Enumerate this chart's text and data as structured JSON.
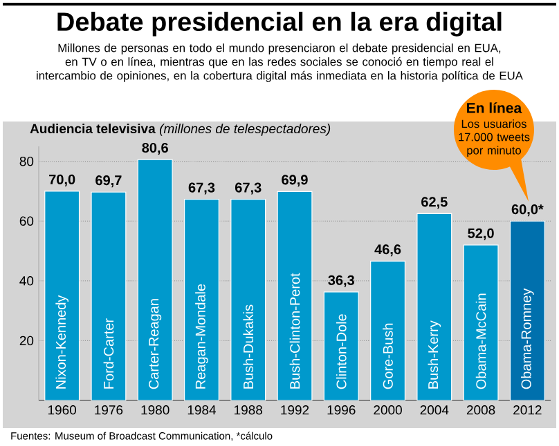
{
  "chart_data": {
    "type": "bar",
    "title": "Debate presidencial en la era digital",
    "subtitle": "Millones de personas en todo el mundo presenciaron el debate presidencial en EUA, en TV o en línea, mientras que en las redes sociales se conoció en tiempo real el intercambio de opiniones, en la cobertura digital más inmediata en la historia política de EUA",
    "ylabel": "**Audiencia televisiva** *(millones de telespectadores)*",
    "categories": [
      "1960",
      "1976",
      "1980",
      "1984",
      "1988",
      "1992",
      "1996",
      "2000",
      "2004",
      "2008",
      "2012"
    ],
    "values": [
      70.0,
      69.7,
      80.6,
      67.3,
      67.3,
      69.9,
      36.3,
      46.6,
      62.5,
      52.0,
      60.0
    ],
    "value_labels": [
      "70,0",
      "69,7",
      "80,6",
      "67,3",
      "67,3",
      "69,9",
      "36,3",
      "46,6",
      "62,5",
      "52,0",
      "60,0*"
    ],
    "colors": [
      "#0099cc",
      "#0099cc",
      "#0099cc",
      "#0099cc",
      "#0099cc",
      "#0099cc",
      "#0099cc",
      "#0099cc",
      "#0099cc",
      "#0099cc",
      "#0070ad"
    ],
    "ylim": [
      0,
      85
    ],
    "yticks": [
      20,
      40,
      60,
      80
    ],
    "grid": "y",
    "annotations": [
      "Nixon-Kennedy",
      "Ford-Carter",
      "Carter-Reagan",
      "Reagan-Mondale",
      "Bush-Dukakis",
      "Bush-Clinton-Perot",
      "Clinton-Dole",
      "Gore-Bush",
      "Bush-Kerry",
      "Obama-McCain",
      "Obama-Romney",
      "**En línea**",
      "Los usuarios 17.000 tweets por minuto",
      "Fuentes: Museum of Broadcast Communication, *cálculo"
    ]
  }
}
